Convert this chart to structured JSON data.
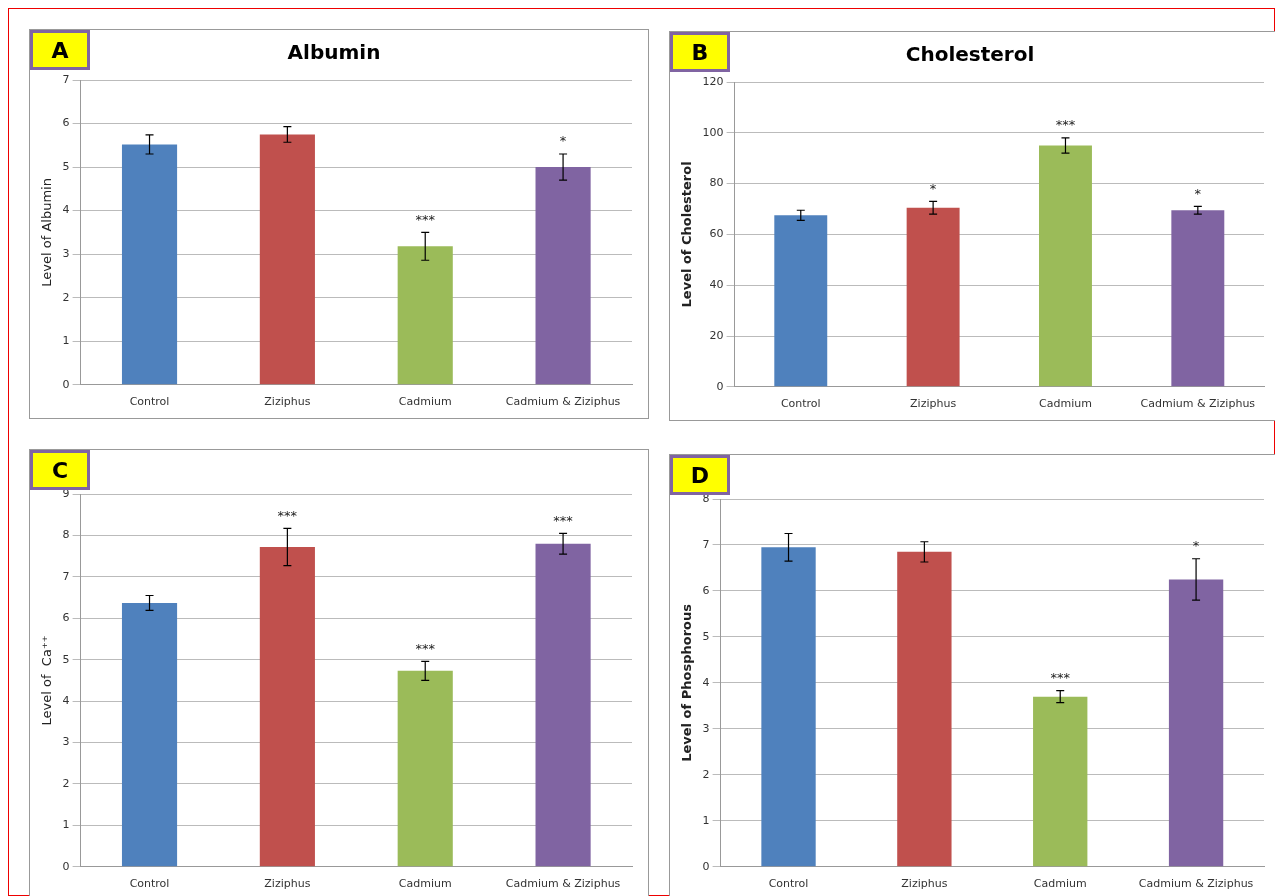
{
  "chart_data": [
    {
      "type": "bar",
      "title": "Albumin",
      "ylabel": "Level of Albumin",
      "categories": [
        "Control",
        "Ziziphus",
        "Cadmium",
        "Cadmium & Ziziphus"
      ],
      "values": [
        5.52,
        5.75,
        3.18,
        5.0
      ],
      "errors": [
        0.22,
        0.18,
        0.32,
        0.3
      ],
      "colors": [
        "#4f81bd",
        "#c0504d",
        "#9bbb59",
        "#8064a2"
      ],
      "ylim": [
        0,
        7
      ],
      "yticks": [
        0,
        1,
        2,
        3,
        4,
        5,
        6,
        7
      ],
      "grid": "y",
      "legend": false,
      "annotations": [
        "A",
        {
          "text": "***",
          "x": "Cadmium",
          "y": 3.18
        },
        {
          "text": "*",
          "x": "Cadmium & Ziziphus",
          "y": 5.0
        }
      ]
    },
    {
      "type": "bar",
      "title": "Cholesterol",
      "ylabel": "Level of Cholesterol",
      "categories": [
        "Control",
        "Ziziphus",
        "Cadmium",
        "Cadmium & Ziziphus"
      ],
      "values": [
        67.5,
        70.5,
        95,
        69.5
      ],
      "errors": [
        2,
        2.5,
        3,
        1.5
      ],
      "colors": [
        "#4f81bd",
        "#c0504d",
        "#9bbb59",
        "#8064a2"
      ],
      "ylim": [
        0,
        120
      ],
      "yticks": [
        0,
        20,
        40,
        60,
        80,
        100,
        120
      ],
      "grid": "y",
      "legend": false,
      "annotations": [
        "B",
        {
          "text": "*",
          "x": "Ziziphus",
          "y": 70.5
        },
        {
          "text": "***",
          "x": "Cadmium",
          "y": 95
        },
        {
          "text": "*",
          "x": "Cadmium & Ziziphus",
          "y": 69.5
        }
      ]
    },
    {
      "type": "bar",
      "ylabel": "Level of  Ca⁺⁺",
      "categories": [
        "Control",
        "Ziziphus",
        "Cadmium",
        "Cadmium & Ziziphus"
      ],
      "values": [
        6.37,
        7.72,
        4.73,
        7.8
      ],
      "errors": [
        0.18,
        0.45,
        0.23,
        0.25
      ],
      "colors": [
        "#4f81bd",
        "#c0504d",
        "#9bbb59",
        "#8064a2"
      ],
      "ylim": [
        0,
        9
      ],
      "yticks": [
        0,
        1,
        2,
        3,
        4,
        5,
        6,
        7,
        8,
        9
      ],
      "grid": "y",
      "legend": false,
      "annotations": [
        "C",
        {
          "text": "***",
          "x": "Ziziphus",
          "y": 7.72
        },
        {
          "text": "***",
          "x": "Cadmium",
          "y": 4.73
        },
        {
          "text": "***",
          "x": "Cadmium & Ziziphus",
          "y": 7.8
        }
      ]
    },
    {
      "type": "bar",
      "ylabel": "Level of Phosphorous",
      "categories": [
        "Control",
        "Ziziphus",
        "Cadmium",
        "Cadmium & Ziziphus"
      ],
      "values": [
        6.95,
        6.85,
        3.7,
        6.25
      ],
      "errors": [
        0.3,
        0.22,
        0.13,
        0.45
      ],
      "colors": [
        "#4f81bd",
        "#c0504d",
        "#9bbb59",
        "#8064a2"
      ],
      "ylim": [
        0,
        8
      ],
      "yticks": [
        0,
        1,
        2,
        3,
        4,
        5,
        6,
        7,
        8
      ],
      "grid": "y",
      "legend": false,
      "annotations": [
        "D",
        {
          "text": "***",
          "x": "Cadmium",
          "y": 3.7
        },
        {
          "text": "*",
          "x": "Cadmium & Ziziphus",
          "y": 6.25
        }
      ]
    }
  ]
}
